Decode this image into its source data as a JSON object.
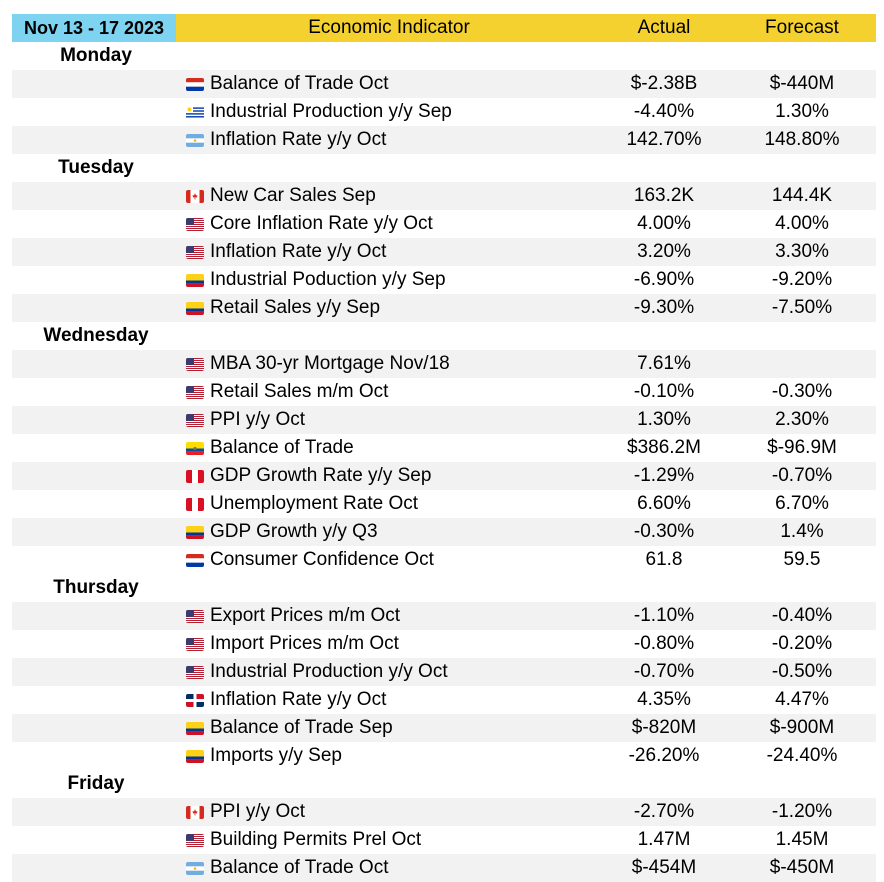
{
  "header": {
    "date_range": "Nov 13 - 17 2023",
    "indicator_col": "Economic Indicator",
    "actual_col": "Actual",
    "forecast_col": "Forecast"
  },
  "days": [
    {
      "day": "Monday",
      "items": [
        {
          "flag": "paraguay-flag",
          "indicator": "Balance of Trade Oct",
          "actual": "$-2.38B",
          "forecast": "$-440M"
        },
        {
          "flag": "uruguay-flag",
          "indicator": "Industrial Production y/y Sep",
          "actual": "-4.40%",
          "forecast": "1.30%"
        },
        {
          "flag": "argentina-flag",
          "indicator": "Inflation Rate y/y Oct",
          "actual": "142.70%",
          "forecast": "148.80%"
        }
      ]
    },
    {
      "day": "Tuesday",
      "items": [
        {
          "flag": "canada-flag",
          "indicator": "New Car Sales Sep",
          "actual": "163.2K",
          "forecast": "144.4K"
        },
        {
          "flag": "usa-flag",
          "indicator": "Core Inflation Rate y/y Oct",
          "actual": "4.00%",
          "forecast": "4.00%"
        },
        {
          "flag": "usa-flag",
          "indicator": "Inflation Rate y/y Oct",
          "actual": "3.20%",
          "forecast": "3.30%"
        },
        {
          "flag": "colombia-flag",
          "indicator": "Industrial Poduction y/y Sep",
          "actual": "-6.90%",
          "forecast": "-9.20%"
        },
        {
          "flag": "colombia-flag",
          "indicator": "Retail Sales y/y Sep",
          "actual": "-9.30%",
          "forecast": "-7.50%"
        }
      ]
    },
    {
      "day": "Wednesday",
      "items": [
        {
          "flag": "usa-flag",
          "indicator": "MBA 30-yr Mortgage Nov/18",
          "actual": "7.61%",
          "forecast": ""
        },
        {
          "flag": "usa-flag",
          "indicator": "Retail Sales m/m Oct",
          "actual": "-0.10%",
          "forecast": "-0.30%"
        },
        {
          "flag": "usa-flag",
          "indicator": "PPI y/y Oct",
          "actual": "1.30%",
          "forecast": "2.30%"
        },
        {
          "flag": "ecuador-flag",
          "indicator": "Balance of Trade",
          "actual": "$386.2M",
          "forecast": "$-96.9M"
        },
        {
          "flag": "peru-flag",
          "indicator": "GDP Growth Rate y/y Sep",
          "actual": "-1.29%",
          "forecast": "-0.70%"
        },
        {
          "flag": "peru-flag",
          "indicator": "Unemployment Rate Oct",
          "actual": "6.60%",
          "forecast": "6.70%"
        },
        {
          "flag": "colombia-flag",
          "indicator": "GDP Growth y/y Q3",
          "actual": "-0.30%",
          "forecast": "1.4%"
        },
        {
          "flag": "paraguay-flag",
          "indicator": "Consumer Confidence Oct",
          "actual": "61.8",
          "forecast": "59.5"
        }
      ]
    },
    {
      "day": "Thursday",
      "items": [
        {
          "flag": "usa-flag",
          "indicator": "Export Prices m/m Oct",
          "actual": "-1.10%",
          "forecast": "-0.40%"
        },
        {
          "flag": "usa-flag",
          "indicator": "Import Prices m/m Oct",
          "actual": "-0.80%",
          "forecast": "-0.20%"
        },
        {
          "flag": "usa-flag",
          "indicator": "Industrial Production y/y Oct",
          "actual": "-0.70%",
          "forecast": "-0.50%"
        },
        {
          "flag": "dominican-republic-flag",
          "indicator": "Inflation Rate y/y Oct",
          "actual": "4.35%",
          "forecast": "4.47%"
        },
        {
          "flag": "colombia-flag",
          "indicator": "Balance of Trade Sep",
          "actual": "$-820M",
          "forecast": "$-900M"
        },
        {
          "flag": "colombia-flag",
          "indicator": "Imports y/y Sep",
          "actual": "-26.20%",
          "forecast": "-24.40%"
        }
      ]
    },
    {
      "day": "Friday",
      "items": [
        {
          "flag": "canada-flag",
          "indicator": "PPI y/y Oct",
          "actual": "-2.70%",
          "forecast": "-1.20%"
        },
        {
          "flag": "usa-flag",
          "indicator": "Building Permits Prel Oct",
          "actual": "1.47M",
          "forecast": "1.45M"
        },
        {
          "flag": "argentina-flag",
          "indicator": "Balance of Trade Oct",
          "actual": "$-454M",
          "forecast": "$-450M"
        }
      ]
    }
  ],
  "colors": {
    "header_date_bg": "#7dd3f0",
    "header_bg": "#f5d130",
    "row_shade": "#f2f2f2"
  }
}
